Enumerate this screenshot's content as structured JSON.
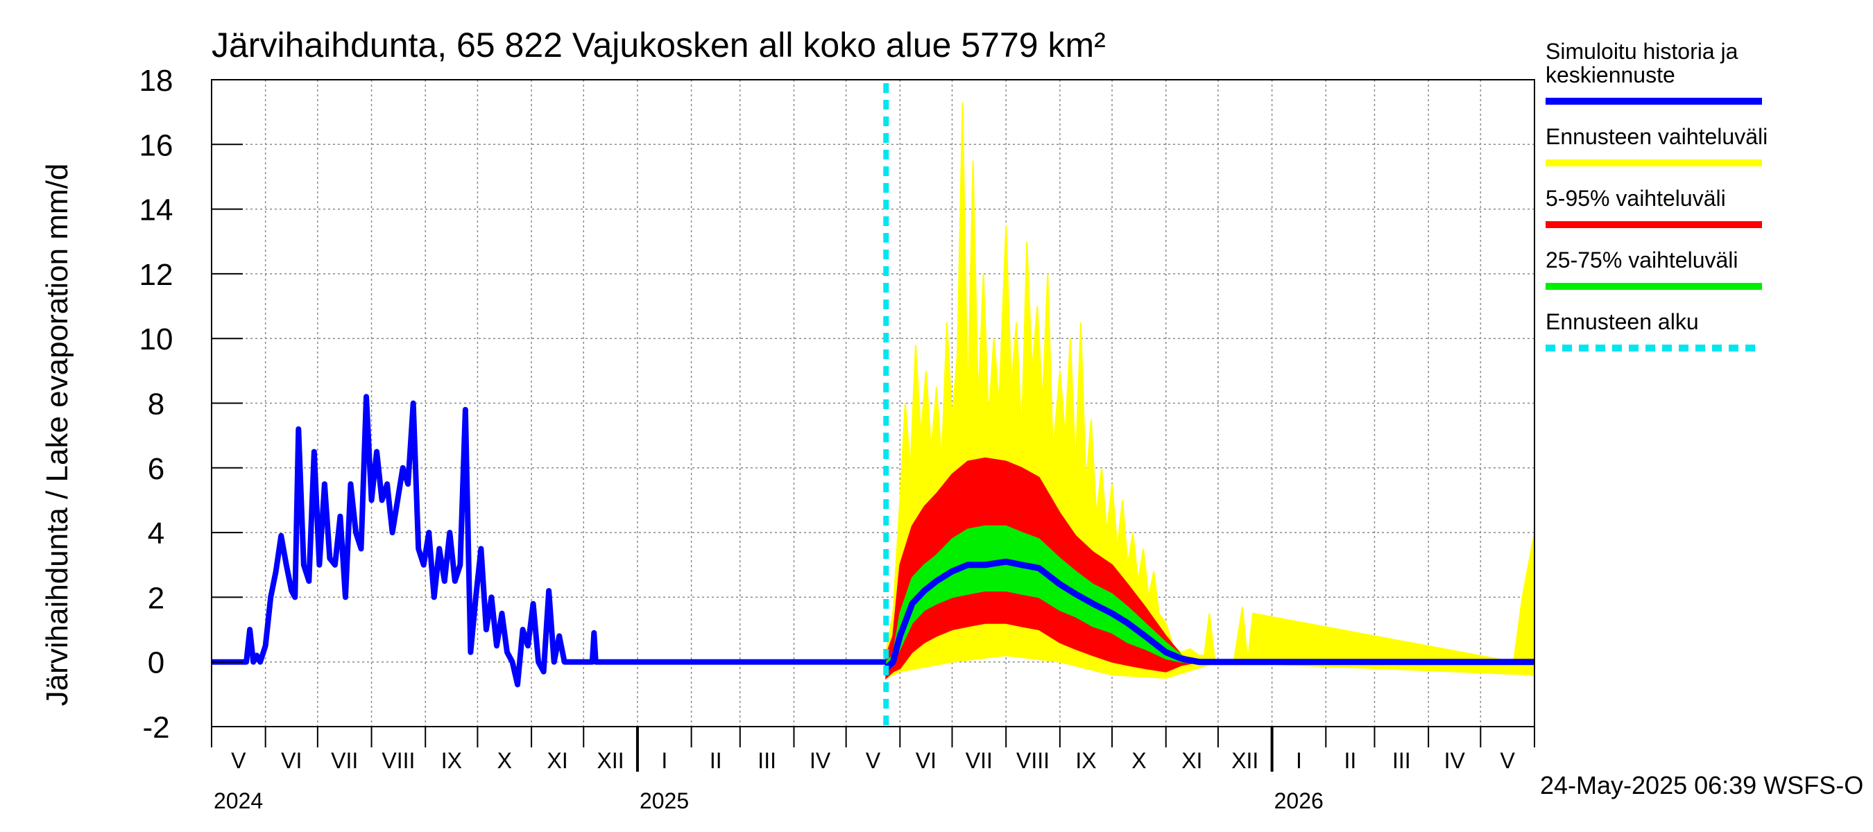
{
  "chart_data": {
    "type": "area",
    "title": "Järvihaihdunta, 65 822 Vajukosken all koko alue 5779 km²",
    "ylabel": "Järvihaihdunta / Lake evaporation   mm/d",
    "xlabel": "",
    "ylim": [
      -2,
      18
    ],
    "yticks": [
      -2,
      0,
      2,
      4,
      6,
      8,
      10,
      12,
      14,
      16,
      18
    ],
    "grid": true,
    "legend_position": "right",
    "x_range": [
      "2024-05-01",
      "2026-06-01"
    ],
    "months": [
      "V",
      "VI",
      "VII",
      "VIII",
      "IX",
      "X",
      "XI",
      "XII",
      "I",
      "II",
      "III",
      "IV",
      "V",
      "VI",
      "VII",
      "VIII",
      "IX",
      "X",
      "XI",
      "XII",
      "I",
      "II",
      "III",
      "IV",
      "V"
    ],
    "years": [
      {
        "label": "2024",
        "date": "2024-05-01"
      },
      {
        "label": "2025",
        "date": "2025-01-01"
      },
      {
        "label": "2026",
        "date": "2026-01-01"
      }
    ],
    "forecast_start": "2025-05-24",
    "footer": "24-May-2025 06:39 WSFS-O",
    "legend": [
      {
        "label": "Simuloitu historia ja\nkeskiennuste",
        "color": "#0000ff",
        "style": "solid"
      },
      {
        "label": "Ennusteen vaihteluväli",
        "color": "#ffff00",
        "style": "solid"
      },
      {
        "label": "5-95% vaihteluväli",
        "color": "#ff0000",
        "style": "solid"
      },
      {
        "label": "25-75% vaihteluväli",
        "color": "#00ee00",
        "style": "solid"
      },
      {
        "label": "Ennusteen alku",
        "color": "#00e5ee",
        "style": "dashed"
      }
    ],
    "colors": {
      "history": "#0000ff",
      "range_full": "#ffff00",
      "range_5_95": "#ff0000",
      "range_25_75": "#00ee00",
      "forecast_start": "#00e5ee"
    },
    "series": {
      "history": {
        "x": [
          "2024-05-01",
          "2024-05-21",
          "2024-05-23",
          "2024-05-25",
          "2024-05-27",
          "2024-05-29",
          "2024-06-01",
          "2024-06-04",
          "2024-06-07",
          "2024-06-10",
          "2024-06-13",
          "2024-06-16",
          "2024-06-18",
          "2024-06-20",
          "2024-06-23",
          "2024-06-26",
          "2024-06-29",
          "2024-07-02",
          "2024-07-05",
          "2024-07-08",
          "2024-07-11",
          "2024-07-14",
          "2024-07-17",
          "2024-07-20",
          "2024-07-23",
          "2024-07-26",
          "2024-07-29",
          "2024-08-01",
          "2024-08-04",
          "2024-08-07",
          "2024-08-10",
          "2024-08-13",
          "2024-08-16",
          "2024-08-19",
          "2024-08-22",
          "2024-08-25",
          "2024-08-28",
          "2024-08-31",
          "2024-09-03",
          "2024-09-06",
          "2024-09-09",
          "2024-09-12",
          "2024-09-15",
          "2024-09-18",
          "2024-09-21",
          "2024-09-24",
          "2024-09-27",
          "2024-09-30",
          "2024-10-03",
          "2024-10-06",
          "2024-10-09",
          "2024-10-12",
          "2024-10-15",
          "2024-10-18",
          "2024-10-21",
          "2024-10-24",
          "2024-10-27",
          "2024-10-30",
          "2024-11-02",
          "2024-11-05",
          "2024-11-08",
          "2024-11-11",
          "2024-11-14",
          "2024-11-17",
          "2024-11-20",
          "2024-11-23",
          "2024-11-26",
          "2024-12-01",
          "2024-12-06",
          "2024-12-07",
          "2024-12-08",
          "2025-05-24"
        ],
        "y": [
          0,
          0,
          1.0,
          0,
          0.2,
          0,
          0.5,
          2.0,
          2.8,
          3.9,
          3.0,
          2.2,
          2.0,
          7.2,
          3.0,
          2.5,
          6.5,
          3.0,
          5.5,
          3.2,
          3.0,
          4.5,
          2.0,
          5.5,
          4.0,
          3.5,
          8.2,
          5.0,
          6.5,
          5.0,
          5.5,
          4.0,
          5.0,
          6.0,
          5.5,
          8.0,
          3.5,
          3.0,
          4.0,
          2.0,
          3.5,
          2.5,
          4.0,
          2.5,
          3.0,
          7.8,
          0.3,
          2.0,
          3.5,
          1.0,
          2.0,
          0.5,
          1.5,
          0.3,
          0,
          -0.7,
          1.0,
          0.5,
          1.8,
          0,
          -0.3,
          2.2,
          0,
          0.8,
          0,
          0,
          0,
          0,
          0,
          0.9,
          0,
          0
        ]
      },
      "median": {
        "x": [
          "2025-05-24",
          "2025-05-28",
          "2025-06-01",
          "2025-06-08",
          "2025-06-15",
          "2025-06-22",
          "2025-07-01",
          "2025-07-10",
          "2025-07-20",
          "2025-08-01",
          "2025-08-10",
          "2025-08-20",
          "2025-09-01",
          "2025-09-10",
          "2025-09-20",
          "2025-10-01",
          "2025-10-10",
          "2025-10-20",
          "2025-11-01",
          "2025-11-10",
          "2025-11-20",
          "2026-06-01"
        ],
        "y": [
          -0.2,
          0,
          0.8,
          1.8,
          2.2,
          2.5,
          2.8,
          3.0,
          3.0,
          3.1,
          3.0,
          2.9,
          2.4,
          2.1,
          1.8,
          1.5,
          1.2,
          0.8,
          0.3,
          0.1,
          0,
          0
        ]
      },
      "p25": {
        "x": [
          "2025-05-24",
          "2025-05-28",
          "2025-06-01",
          "2025-06-08",
          "2025-06-15",
          "2025-06-22",
          "2025-07-01",
          "2025-07-10",
          "2025-07-20",
          "2025-08-01",
          "2025-08-10",
          "2025-08-20",
          "2025-09-01",
          "2025-09-10",
          "2025-09-20",
          "2025-10-01",
          "2025-10-10",
          "2025-10-20",
          "2025-11-01",
          "2025-11-10",
          "2025-11-20",
          "2026-06-01"
        ],
        "y": [
          -0.2,
          0,
          0.4,
          1.2,
          1.6,
          1.8,
          2.0,
          2.1,
          2.2,
          2.2,
          2.1,
          2.0,
          1.6,
          1.4,
          1.1,
          0.9,
          0.6,
          0.4,
          0.1,
          0,
          0,
          0
        ]
      },
      "p75": {
        "x": [
          "2025-05-24",
          "2025-05-28",
          "2025-06-01",
          "2025-06-08",
          "2025-06-15",
          "2025-06-22",
          "2025-07-01",
          "2025-07-10",
          "2025-07-20",
          "2025-08-01",
          "2025-08-10",
          "2025-08-20",
          "2025-09-01",
          "2025-09-10",
          "2025-09-20",
          "2025-10-01",
          "2025-10-10",
          "2025-10-20",
          "2025-11-01",
          "2025-11-10",
          "2025-11-20",
          "2026-06-01"
        ],
        "y": [
          0,
          0.2,
          1.5,
          2.6,
          3.0,
          3.3,
          3.8,
          4.1,
          4.2,
          4.2,
          4.0,
          3.8,
          3.2,
          2.8,
          2.4,
          2.1,
          1.7,
          1.2,
          0.6,
          0.2,
          0,
          0
        ]
      },
      "p05": {
        "x": [
          "2025-05-24",
          "2025-05-28",
          "2025-06-01",
          "2025-06-08",
          "2025-06-15",
          "2025-06-22",
          "2025-07-01",
          "2025-07-10",
          "2025-07-20",
          "2025-08-01",
          "2025-08-10",
          "2025-08-20",
          "2025-09-01",
          "2025-09-10",
          "2025-09-20",
          "2025-10-01",
          "2025-10-10",
          "2025-10-20",
          "2025-11-01",
          "2025-11-10",
          "2025-11-20",
          "2026-06-01"
        ],
        "y": [
          -0.5,
          -0.3,
          -0.2,
          0.3,
          0.6,
          0.8,
          1.0,
          1.1,
          1.2,
          1.2,
          1.1,
          1.0,
          0.6,
          0.4,
          0.2,
          0,
          -0.1,
          -0.2,
          -0.3,
          -0.1,
          0,
          0
        ]
      },
      "p95": {
        "x": [
          "2025-05-24",
          "2025-05-28",
          "2025-06-01",
          "2025-06-08",
          "2025-06-15",
          "2025-06-22",
          "2025-07-01",
          "2025-07-10",
          "2025-07-20",
          "2025-08-01",
          "2025-08-10",
          "2025-08-20",
          "2025-09-01",
          "2025-09-10",
          "2025-09-20",
          "2025-10-01",
          "2025-10-10",
          "2025-10-20",
          "2025-11-01",
          "2025-11-10",
          "2025-11-20",
          "2026-06-01"
        ],
        "y": [
          0.2,
          0.8,
          3.0,
          4.2,
          4.8,
          5.2,
          5.8,
          6.2,
          6.3,
          6.2,
          6.0,
          5.7,
          4.6,
          3.9,
          3.4,
          3.0,
          2.4,
          1.7,
          0.8,
          0.2,
          0,
          0
        ]
      },
      "range_min": {
        "x": [
          "2025-05-24",
          "2025-06-01",
          "2025-07-01",
          "2025-08-01",
          "2025-09-01",
          "2025-10-01",
          "2025-11-01",
          "2025-12-01",
          "2026-06-01"
        ],
        "y": [
          -0.5,
          -0.3,
          0,
          0.2,
          0,
          -0.4,
          -0.5,
          0,
          -0.4
        ]
      },
      "range_max": {
        "x": [
          "2025-05-24",
          "2025-05-28",
          "2025-06-01",
          "2025-06-04",
          "2025-06-07",
          "2025-06-10",
          "2025-06-13",
          "2025-06-16",
          "2025-06-19",
          "2025-06-22",
          "2025-06-25",
          "2025-06-28",
          "2025-07-01",
          "2025-07-04",
          "2025-07-07",
          "2025-07-10",
          "2025-07-13",
          "2025-07-16",
          "2025-07-19",
          "2025-07-22",
          "2025-07-25",
          "2025-07-28",
          "2025-08-01",
          "2025-08-04",
          "2025-08-07",
          "2025-08-10",
          "2025-08-13",
          "2025-08-16",
          "2025-08-19",
          "2025-08-22",
          "2025-08-25",
          "2025-08-28",
          "2025-09-01",
          "2025-09-04",
          "2025-09-07",
          "2025-09-10",
          "2025-09-13",
          "2025-09-16",
          "2025-09-19",
          "2025-09-22",
          "2025-09-25",
          "2025-09-28",
          "2025-10-01",
          "2025-10-04",
          "2025-10-07",
          "2025-10-10",
          "2025-10-13",
          "2025-10-16",
          "2025-10-19",
          "2025-10-22",
          "2025-10-25",
          "2025-10-28",
          "2025-11-01",
          "2025-11-05",
          "2025-11-10",
          "2025-11-15",
          "2025-11-20",
          "2025-11-23",
          "2025-11-26",
          "2025-11-29",
          "2025-12-02",
          "2025-12-10",
          "2025-12-15",
          "2025-12-18",
          "2025-12-21",
          "2026-05-20",
          "2026-05-25",
          "2026-06-01"
        ],
        "y": [
          0.3,
          1.5,
          5.0,
          8.0,
          6.0,
          9.8,
          7.0,
          9.0,
          6.5,
          8.5,
          6.2,
          10.5,
          7.5,
          9.5,
          17.3,
          8.0,
          15.5,
          8.0,
          12.0,
          7.5,
          10.0,
          8.0,
          13.5,
          8.5,
          10.5,
          7.0,
          13.0,
          9.0,
          11.0,
          8.0,
          12.0,
          6.5,
          9.0,
          7.0,
          10.0,
          6.0,
          10.5,
          5.5,
          7.5,
          4.5,
          6.0,
          4.0,
          5.5,
          3.5,
          5.0,
          3.0,
          4.0,
          2.5,
          3.5,
          2.0,
          2.8,
          1.5,
          1.2,
          0.5,
          0.3,
          0.4,
          0.2,
          0.2,
          1.5,
          0.1,
          0,
          0,
          1.7,
          0,
          1.5,
          0,
          2.0,
          4.0
        ]
      }
    }
  }
}
